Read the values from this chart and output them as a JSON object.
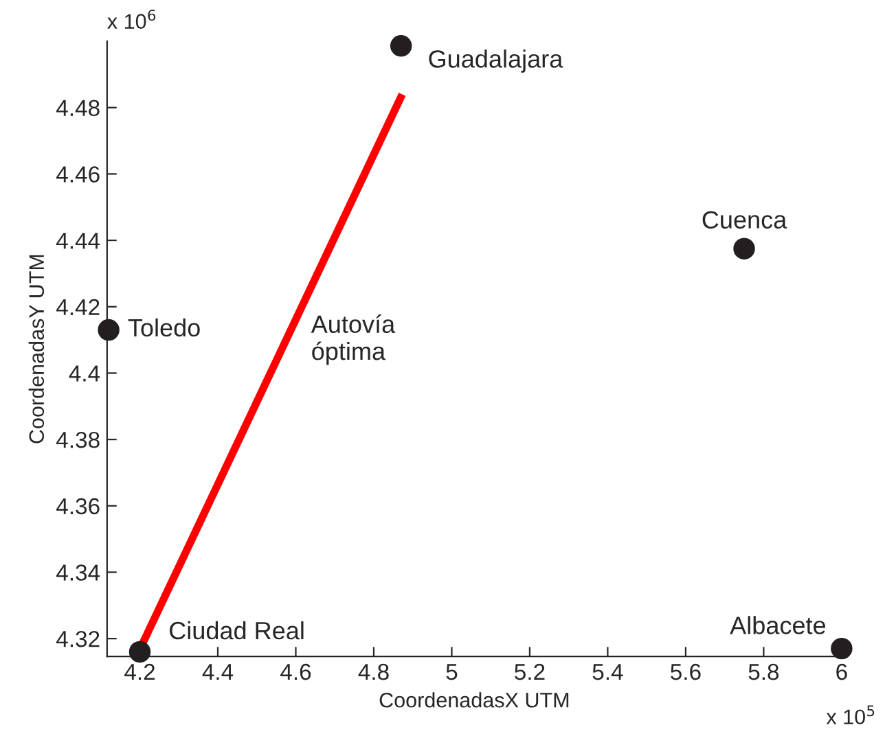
{
  "chart_data": {
    "type": "scatter",
    "xlabel": "CoordenadasX UTM",
    "ylabel": "CoordenadasY UTM",
    "xlim": [
      4.116,
      6.0
    ],
    "ylim": [
      4.3146,
      4.5
    ],
    "xticks": [
      4.2,
      4.4,
      4.6,
      4.8,
      5,
      5.2,
      5.4,
      5.6,
      5.8,
      6
    ],
    "yticks": [
      4.32,
      4.34,
      4.36,
      4.38,
      4.4,
      4.42,
      4.44,
      4.46,
      4.48
    ],
    "grid": false,
    "legend": false,
    "marker": "circle",
    "series": [
      {
        "color": "#231f20",
        "x": [
          4.87,
          5.75,
          4.12,
          4.2,
          6.0
        ],
        "values": [
          4.4986,
          4.4375,
          4.413,
          4.316,
          4.317
        ]
      },
      {
        "type": "line",
        "color": "#ff0000",
        "x": [
          4.197,
          4.873
        ],
        "values": [
          4.316,
          4.484
        ],
        "line_style": "solid",
        "marker": "none"
      }
    ],
    "annotations": [
      {
        "text": "Guadalajara",
        "x": 4.87,
        "y": 4.4986
      },
      {
        "text": "Cuenca",
        "x": 5.75,
        "y": 4.4375
      },
      {
        "text": "Toledo",
        "x": 4.12,
        "y": 4.413
      },
      {
        "text": "Ciudad Real",
        "x": 4.2,
        "y": 4.316
      },
      {
        "text": "Albacete",
        "x": 6.0,
        "y": 4.317
      },
      {
        "text": "Autovía\nóptima",
        "x": 4.6,
        "y": 4.41
      },
      "x 10$^{6}$",
      "x 10$^{5}$"
    ]
  }
}
